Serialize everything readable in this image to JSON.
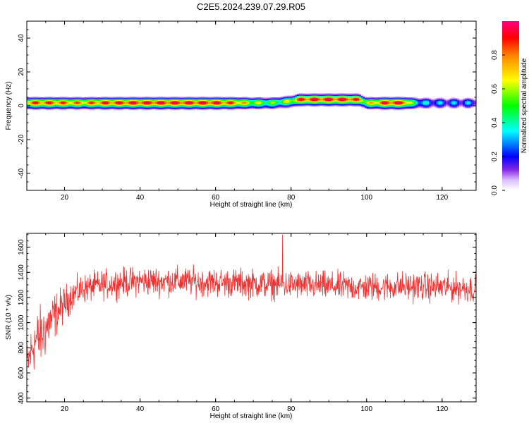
{
  "title": "C2E5.2024.239.07.29.R05",
  "chart_data": [
    {
      "type": "heatmap",
      "xlabel": "Height of straight line (km)",
      "ylabel": "Frequency (Hz)",
      "xlim": [
        10,
        129
      ],
      "ylim": [
        -50,
        50
      ],
      "xticks": [
        20,
        40,
        60,
        80,
        100,
        120
      ],
      "yticks": [
        -40,
        -20,
        0,
        20,
        40
      ],
      "colorbar": {
        "label": "Normalized spectral amplitude",
        "range": [
          0,
          1
        ],
        "ticks": [
          "0.0",
          "0.2",
          "0.4",
          "0.6",
          "0.8"
        ],
        "tick_values": [
          0.0,
          0.2,
          0.4,
          0.6,
          0.8
        ]
      },
      "ridge": {
        "x": [
          10,
          15,
          20,
          25,
          30,
          40,
          50,
          60,
          65,
          70,
          75,
          80,
          82,
          85,
          90,
          95,
          98,
          100,
          105,
          110,
          112,
          115,
          120,
          129
        ],
        "center_freq": [
          2,
          2,
          2,
          2,
          2,
          2,
          2,
          2,
          2,
          2,
          2,
          3,
          4,
          4,
          4,
          4,
          4,
          2,
          2,
          2,
          2,
          2,
          2,
          2
        ],
        "peak_amplitude": [
          0.8,
          0.85,
          0.8,
          0.75,
          0.85,
          0.9,
          0.9,
          0.9,
          0.8,
          0.6,
          0.5,
          0.6,
          0.85,
          0.9,
          0.9,
          0.9,
          0.8,
          0.6,
          0.9,
          0.9,
          0.5,
          0.3,
          0.25,
          0.25
        ]
      }
    },
    {
      "type": "line",
      "xlabel": "Height of straight line (km)",
      "ylabel": "SNR (10 * v/v)",
      "xlim": [
        10,
        129
      ],
      "ylim": [
        370,
        1710
      ],
      "xticks": [
        20,
        40,
        60,
        80,
        100,
        120
      ],
      "yticks": [
        400,
        600,
        800,
        1000,
        1200,
        1400,
        1600
      ],
      "series": [
        {
          "color": "#ee3333",
          "trend_x": [
            10,
            12,
            14,
            16,
            18,
            20,
            22,
            25,
            30,
            35,
            40,
            50,
            60,
            70,
            80,
            90,
            100,
            110,
            120,
            129
          ],
          "trend_y": [
            650,
            850,
            900,
            1000,
            1080,
            1150,
            1220,
            1270,
            1300,
            1320,
            1330,
            1330,
            1320,
            1310,
            1300,
            1290,
            1280,
            1290,
            1280,
            1270
          ],
          "spread": [
            200,
            250,
            250,
            220,
            180,
            150,
            130,
            120,
            120,
            120,
            120,
            120,
            120,
            120,
            120,
            120,
            120,
            120,
            120,
            120
          ]
        }
      ]
    }
  ]
}
